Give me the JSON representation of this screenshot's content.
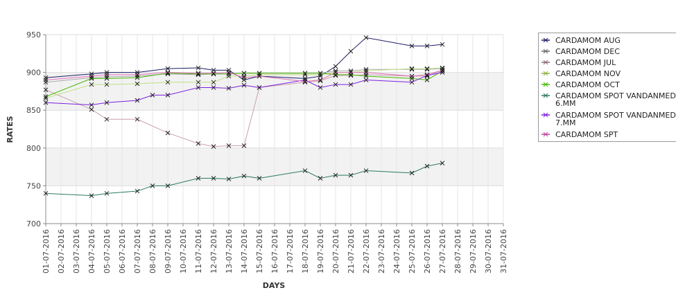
{
  "chart_data": {
    "type": "line",
    "xlabel": "DAYS",
    "ylabel": "RATES",
    "ylim": [
      700,
      950
    ],
    "yticks": [
      700,
      750,
      800,
      850,
      900,
      950
    ],
    "grid": true,
    "legend_position": "right",
    "categories": [
      "01-07-2016",
      "02-07-2016",
      "03-07-2016",
      "04-07-2016",
      "05-07-2016",
      "06-07-2016",
      "07-07-2016",
      "08-07-2016",
      "09-07-2016",
      "10-07-2016",
      "11-07-2016",
      "12-07-2016",
      "13-07-2016",
      "14-07-2016",
      "15-07-2016",
      "16-07-2016",
      "17-07-2016",
      "18-07-2016",
      "19-07-2016",
      "20-07-2016",
      "21-07-2016",
      "22-07-2016",
      "23-07-2016",
      "24-07-2016",
      "25-07-2016",
      "26-07-2016",
      "27-07-2016",
      "28-07-2016",
      "29-07-2016",
      "30-07-2016",
      "31-07-2016"
    ],
    "series": [
      {
        "name": "CARDAMOM AUG",
        "color": "#1a1a66",
        "points": [
          [
            1,
            893
          ],
          [
            4,
            898
          ],
          [
            5,
            900
          ],
          [
            7,
            900
          ],
          [
            9,
            905
          ],
          [
            11,
            906
          ],
          [
            12,
            903
          ],
          [
            13,
            903
          ],
          [
            14,
            890
          ],
          [
            15,
            895
          ],
          [
            18,
            892
          ],
          [
            19,
            895
          ],
          [
            20,
            908
          ],
          [
            21,
            928
          ],
          [
            22,
            946
          ],
          [
            25,
            935
          ],
          [
            26,
            935
          ],
          [
            27,
            937
          ]
        ]
      },
      {
        "name": "CARDAMOM DEC",
        "color": "#aaaaaa",
        "points": [
          [
            1,
            887
          ],
          [
            4,
            893
          ],
          [
            5,
            894
          ],
          [
            7,
            895
          ],
          [
            9,
            898
          ],
          [
            11,
            897
          ],
          [
            12,
            898
          ],
          [
            13,
            898
          ],
          [
            14,
            899
          ],
          [
            15,
            899
          ],
          [
            18,
            899
          ],
          [
            19,
            899
          ],
          [
            20,
            902
          ],
          [
            21,
            902
          ],
          [
            22,
            904
          ],
          [
            25,
            904
          ],
          [
            26,
            904
          ],
          [
            27,
            905
          ]
        ]
      },
      {
        "name": "CARDAMOM JUL",
        "color": "#c8a0a8",
        "points": [
          [
            1,
            877
          ],
          [
            4,
            851
          ],
          [
            5,
            838
          ],
          [
            7,
            838
          ],
          [
            9,
            820
          ],
          [
            11,
            806
          ],
          [
            12,
            802
          ],
          [
            13,
            803
          ],
          [
            14,
            803
          ],
          [
            15,
            880
          ],
          [
            18,
            887
          ],
          [
            19,
            889
          ],
          [
            20,
            896
          ],
          [
            21,
            896
          ],
          [
            22,
            897
          ],
          [
            25,
            895
          ],
          [
            26,
            895
          ],
          [
            27,
            903
          ]
        ]
      },
      {
        "name": "CARDAMOM NOV",
        "color": "#c0e080",
        "points": [
          [
            1,
            866
          ],
          [
            4,
            884
          ],
          [
            5,
            884
          ],
          [
            7,
            885
          ],
          [
            9,
            887
          ],
          [
            11,
            887
          ],
          [
            12,
            887
          ],
          [
            13,
            895
          ],
          [
            14,
            895
          ],
          [
            15,
            897
          ],
          [
            18,
            897
          ],
          [
            19,
            897
          ],
          [
            20,
            900
          ],
          [
            21,
            900
          ],
          [
            22,
            902
          ],
          [
            25,
            905
          ],
          [
            26,
            905
          ],
          [
            27,
            906
          ]
        ]
      },
      {
        "name": "CARDAMOM OCT",
        "color": "#44b800",
        "points": [
          [
            1,
            868
          ],
          [
            4,
            892
          ],
          [
            5,
            892
          ],
          [
            7,
            893
          ],
          [
            9,
            899
          ],
          [
            11,
            898
          ],
          [
            12,
            898
          ],
          [
            13,
            898
          ],
          [
            14,
            899
          ],
          [
            15,
            899
          ],
          [
            18,
            899
          ],
          [
            19,
            899
          ],
          [
            20,
            897
          ],
          [
            21,
            897
          ],
          [
            22,
            895
          ],
          [
            25,
            892
          ],
          [
            26,
            890
          ],
          [
            27,
            902
          ]
        ]
      },
      {
        "name": "CARDAMOM SPOT VANDANMEDU 6.MM",
        "color": "#2a7a5a",
        "points": [
          [
            1,
            740
          ],
          [
            4,
            737
          ],
          [
            5,
            740
          ],
          [
            7,
            743
          ],
          [
            8,
            750
          ],
          [
            9,
            750
          ],
          [
            11,
            760
          ],
          [
            12,
            760
          ],
          [
            13,
            759
          ],
          [
            14,
            763
          ],
          [
            15,
            760
          ],
          [
            18,
            770
          ],
          [
            19,
            760
          ],
          [
            20,
            764
          ],
          [
            21,
            764
          ],
          [
            22,
            770
          ],
          [
            25,
            767
          ],
          [
            26,
            776
          ],
          [
            27,
            780
          ]
        ]
      },
      {
        "name": "CARDAMOM SPOT VANDANMEDU 7.MM",
        "color": "#7b1fe0",
        "points": [
          [
            1,
            860
          ],
          [
            4,
            857
          ],
          [
            5,
            860
          ],
          [
            7,
            863
          ],
          [
            8,
            870
          ],
          [
            9,
            870
          ],
          [
            11,
            880
          ],
          [
            12,
            880
          ],
          [
            13,
            879
          ],
          [
            14,
            883
          ],
          [
            15,
            880
          ],
          [
            18,
            890
          ],
          [
            19,
            880
          ],
          [
            20,
            884
          ],
          [
            21,
            884
          ],
          [
            22,
            890
          ],
          [
            25,
            887
          ],
          [
            26,
            896
          ],
          [
            27,
            900
          ]
        ]
      },
      {
        "name": "CARDAMOM SPT",
        "color": "#e070b8",
        "points": [
          [
            1,
            890
          ],
          [
            4,
            895
          ],
          [
            5,
            897
          ],
          [
            7,
            897
          ],
          [
            9,
            900
          ],
          [
            11,
            899
          ],
          [
            12,
            899
          ],
          [
            13,
            900
          ],
          [
            14,
            893
          ],
          [
            15,
            895
          ],
          [
            18,
            888
          ],
          [
            19,
            890
          ],
          [
            20,
            900
          ],
          [
            21,
            900
          ],
          [
            22,
            900
          ],
          [
            25,
            895
          ],
          [
            26,
            897
          ],
          [
            27,
            903
          ]
        ]
      }
    ],
    "legend_entries": [
      {
        "lines": [
          "CARDAMOM AUG"
        ],
        "color": "#1a1a66"
      },
      {
        "lines": [
          "CARDAMOM DEC"
        ],
        "color": "#666666"
      },
      {
        "lines": [
          "CARDAMOM JUL"
        ],
        "color": "#8a6a70"
      },
      {
        "lines": [
          "CARDAMOM NOV"
        ],
        "color": "#90b040"
      },
      {
        "lines": [
          "CARDAMOM OCT"
        ],
        "color": "#44b800"
      },
      {
        "lines": [
          "CARDAMOM SPOT VANDANMEDU",
          "6.MM"
        ],
        "color": "#2a7a5a"
      },
      {
        "lines": [
          "CARDAMOM SPOT VANDANMEDU",
          "7.MM"
        ],
        "color": "#7b1fe0"
      },
      {
        "lines": [
          "CARDAMOM SPT"
        ],
        "color": "#c040a0"
      }
    ]
  }
}
